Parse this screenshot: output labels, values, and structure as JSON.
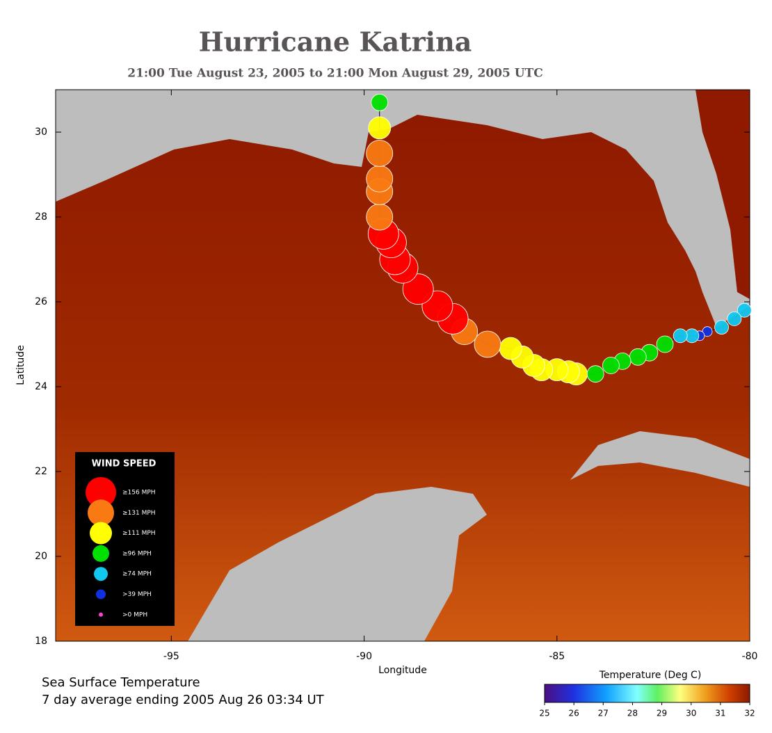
{
  "chart_data": {
    "type": "track",
    "title": "Hurricane Katrina",
    "subtitle": "21:00 Tue August 23, 2005 to 21:00 Mon August 29, 2005  UTC",
    "x_label": "Longitude",
    "y_label": "Latitude",
    "xlim": [
      -98,
      -80
    ],
    "ylim": [
      18,
      31
    ],
    "xticks": [
      -95,
      -90,
      -85,
      -80
    ],
    "yticks": [
      18,
      20,
      22,
      24,
      26,
      28,
      30
    ],
    "legend_title": "WIND SPEED",
    "legend": [
      {
        "label": "≥156 MPH",
        "min_mph": 156,
        "color": "#ff0000"
      },
      {
        "label": "≥131 MPH",
        "min_mph": 131,
        "color": "#f97a12"
      },
      {
        "label": "≥111 MPH",
        "min_mph": 111,
        "color": "#ffff00"
      },
      {
        "label": "≥96 MPH",
        "min_mph": 96,
        "color": "#00e000"
      },
      {
        "label": "≥74 MPH",
        "min_mph": 74,
        "color": "#10c8f0"
      },
      {
        "label": ">39 MPH",
        "min_mph": 39,
        "color": "#1030e0"
      },
      {
        "label": ">0 MPH",
        "min_mph": 0,
        "color": "#ff40d0"
      }
    ],
    "track": {
      "x": [
        -80.14,
        -80.4,
        -80.73,
        -81.1,
        -81.3,
        -81.5,
        -81.8,
        -82.2,
        -82.6,
        -82.9,
        -83.3,
        -83.6,
        -84.0,
        -84.5,
        -84.7,
        -85.0,
        -85.4,
        -85.6,
        -85.9,
        -86.2,
        -86.8,
        -87.4,
        -87.7,
        -88.1,
        -88.6,
        -89.0,
        -89.2,
        -89.3,
        -89.5,
        -89.6,
        -89.6,
        -89.6,
        -89.6,
        -89.6,
        -89.6
      ],
      "y": [
        25.8,
        25.6,
        25.4,
        25.3,
        25.2,
        25.2,
        25.2,
        25.0,
        24.8,
        24.7,
        24.6,
        24.5,
        24.3,
        24.3,
        24.35,
        24.4,
        24.4,
        24.5,
        24.7,
        24.9,
        25.0,
        25.3,
        25.6,
        25.9,
        26.3,
        26.8,
        27.0,
        27.4,
        27.6,
        28.0,
        28.6,
        28.9,
        29.5,
        30.1,
        30.7
      ],
      "mph": [
        74,
        74,
        74,
        39,
        39,
        74,
        74,
        96,
        96,
        96,
        96,
        96,
        96,
        111,
        111,
        111,
        111,
        111,
        111,
        111,
        131,
        131,
        156,
        156,
        156,
        156,
        156,
        156,
        156,
        131,
        131,
        131,
        131,
        111,
        96
      ]
    },
    "footer_line1": "Sea Surface Temperature",
    "footer_line2": "7 day average ending 2005 Aug 26 03:34 UT",
    "colorbar": {
      "title": "Temperature (Deg C)",
      "lim": [
        25,
        32
      ],
      "ticks": [
        25,
        26,
        27,
        28,
        29,
        30,
        31,
        32
      ]
    }
  }
}
